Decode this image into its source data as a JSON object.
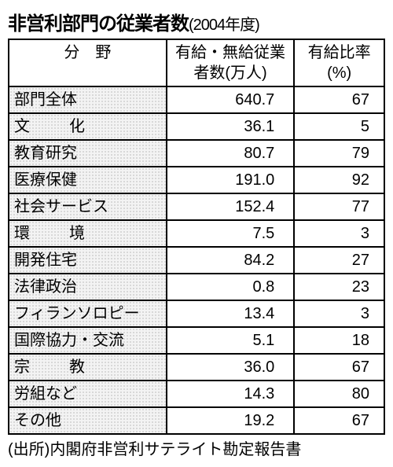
{
  "title_main": "非営利部門の従業者数",
  "title_sub": "(2004年度)",
  "header": {
    "col1": "分　野",
    "col2": "有給・無給従業者数(万人)",
    "col3": "有給比率(%)"
  },
  "rows": [
    {
      "label": "部門全体",
      "cls": "",
      "value": "640.7",
      "pct": "67"
    },
    {
      "label": "文化",
      "cls": "sp2",
      "value": "36.1",
      "pct": "5"
    },
    {
      "label": "教育研究",
      "cls": "",
      "value": "80.7",
      "pct": "79"
    },
    {
      "label": "医療保健",
      "cls": "",
      "value": "191.0",
      "pct": "92"
    },
    {
      "label": "社会サービス",
      "cls": "",
      "value": "152.4",
      "pct": "77"
    },
    {
      "label": "環境",
      "cls": "sp2",
      "value": "7.5",
      "pct": "3"
    },
    {
      "label": "開発住宅",
      "cls": "",
      "value": "84.2",
      "pct": "27"
    },
    {
      "label": "法律政治",
      "cls": "",
      "value": "0.8",
      "pct": "23"
    },
    {
      "label": "フィランソロピー",
      "cls": "",
      "value": "13.4",
      "pct": "3"
    },
    {
      "label": "国際協力・交流",
      "cls": "",
      "value": "5.1",
      "pct": "18"
    },
    {
      "label": "宗教",
      "cls": "sp2",
      "value": "36.0",
      "pct": "67"
    },
    {
      "label": "労組など",
      "cls": "",
      "value": "14.3",
      "pct": "80"
    },
    {
      "label": "その他",
      "cls": "",
      "value": "19.2",
      "pct": "67"
    }
  ],
  "source": "(出所)内閣府非営利サテライト勘定報告書"
}
